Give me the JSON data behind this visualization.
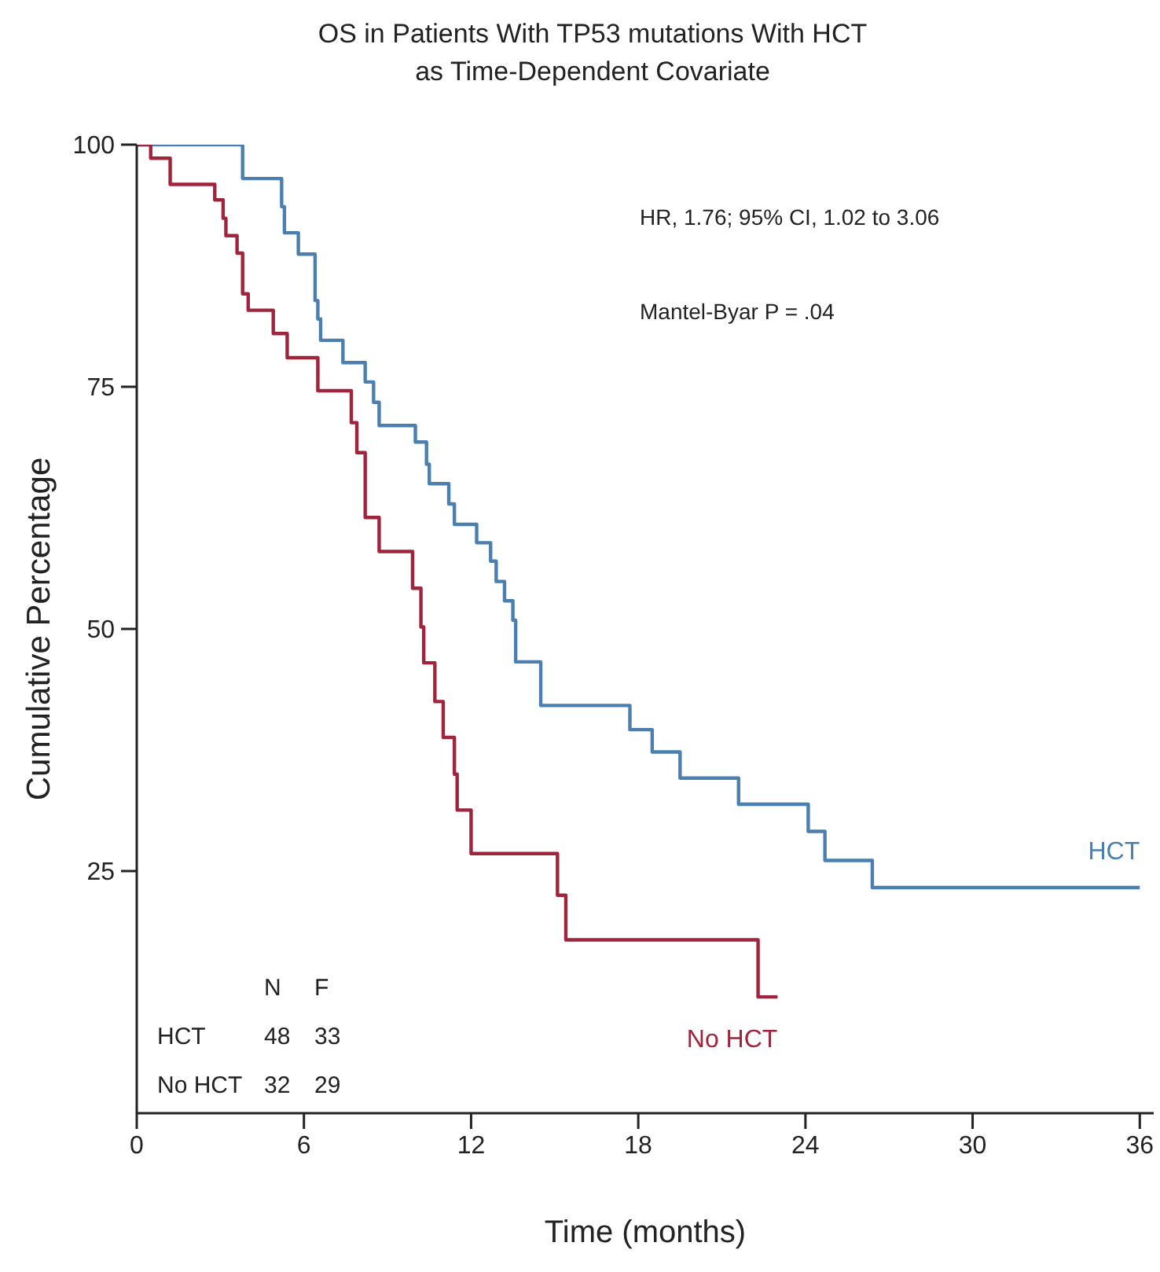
{
  "chart_data": {
    "type": "step",
    "title": "OS in Patients With TP53 mutations With HCT",
    "subtitle": "as Time-Dependent Covariate",
    "xlabel": "Time (months)",
    "ylabel": "Cumulative Percentage",
    "xlim": [
      0,
      36.5
    ],
    "xticks": [
      0,
      6,
      12,
      18,
      24,
      30,
      36
    ],
    "ylim": [
      0,
      100
    ],
    "yticks": [
      25,
      50,
      75,
      100
    ],
    "grid": false,
    "legend": false,
    "annotations": [
      "HR, 1.76; 95% CI, 1.02 to 3.06",
      "Mantel-Byar P = .04",
      "N",
      "F",
      "HCT",
      "48",
      "33",
      "No HCT",
      "32",
      "29"
    ],
    "series": [
      {
        "name": "HCT",
        "color": "#4a7fb0",
        "x": [
          0,
          3.8,
          5.2,
          5.3,
          5.8,
          6.4,
          6.5,
          6.6,
          7.4,
          8.2,
          8.5,
          8.7,
          10.0,
          10.4,
          10.5,
          11.2,
          11.4,
          12.2,
          12.7,
          12.9,
          13.2,
          13.5,
          13.6,
          14.5,
          17.7,
          18.5,
          19.5,
          21.6,
          24.1,
          24.7,
          26.4,
          36
        ],
        "values": [
          100,
          96.5,
          93.6,
          90.9,
          88.7,
          83.9,
          82,
          79.8,
          77.5,
          75.5,
          73.4,
          71,
          69.3,
          67,
          65,
          62.9,
          60.8,
          58.9,
          57,
          54.9,
          52.9,
          50.9,
          46.6,
          42.1,
          39.6,
          37.3,
          34.6,
          31.9,
          29.1,
          26.1,
          23.3,
          23.3
        ]
      },
      {
        "name": "No HCT",
        "color": "#a0243c",
        "x": [
          0,
          0.5,
          1.2,
          2.8,
          3.1,
          3.2,
          3.6,
          3.8,
          4.0,
          4.9,
          5.4,
          6.5,
          7.7,
          7.9,
          8.2,
          8.7,
          9.9,
          10.2,
          10.3,
          10.7,
          11.0,
          11.4,
          11.5,
          12.0,
          15.1,
          15.4,
          22.3,
          23.0
        ],
        "values": [
          100,
          98.6,
          95.9,
          94.3,
          92.4,
          90.6,
          88.8,
          84.6,
          82.9,
          80.5,
          78,
          74.6,
          71.3,
          68.2,
          61.5,
          58,
          54.2,
          50.2,
          46.5,
          42.5,
          38.8,
          35,
          31.3,
          26.8,
          22.5,
          17.9,
          12,
          12
        ]
      }
    ]
  }
}
